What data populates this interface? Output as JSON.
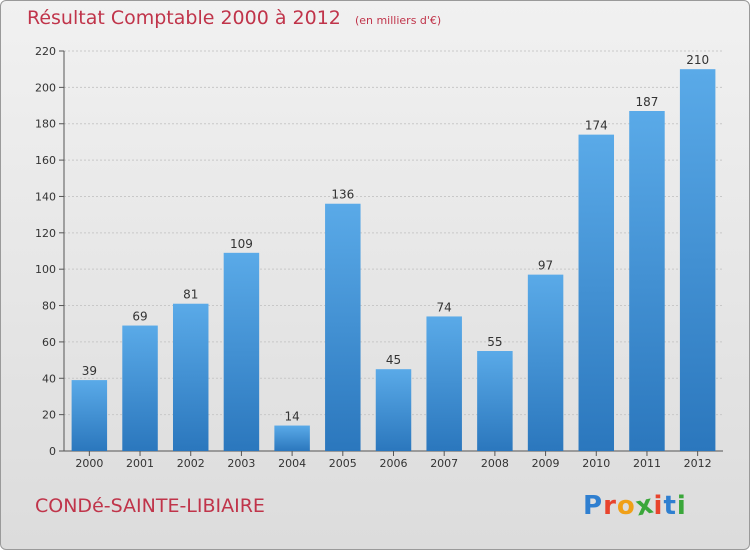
{
  "chart_data": {
    "type": "bar",
    "title": "Résultat Comptable 2000 à 2012",
    "subtitle": "(en milliers d'€)",
    "categories": [
      "2000",
      "2001",
      "2002",
      "2003",
      "2004",
      "2005",
      "2006",
      "2007",
      "2008",
      "2009",
      "2010",
      "2011",
      "2012"
    ],
    "values": [
      39,
      69,
      81,
      109,
      14,
      136,
      45,
      74,
      55,
      97,
      174,
      187,
      210
    ],
    "ylim": [
      0,
      220
    ],
    "yticks": [
      0,
      20,
      40,
      60,
      80,
      100,
      120,
      140,
      160,
      180,
      200,
      220
    ],
    "grid": true,
    "bar_color": "#3d8fd6",
    "bar_color_light": "#5aaae8",
    "bar_color_dark": "#2b77bd"
  },
  "footer": {
    "commune": "CONDé-SAINTE-LIBIAIRE",
    "logo": [
      "P",
      "r",
      "o",
      "x",
      "i",
      "t",
      "i"
    ],
    "logo_colors": [
      "#2f7fd0",
      "#e8442d",
      "#f0a018",
      "#3aa73a",
      "#e8442d",
      "#2f7fd0",
      "#3aa73a"
    ]
  }
}
